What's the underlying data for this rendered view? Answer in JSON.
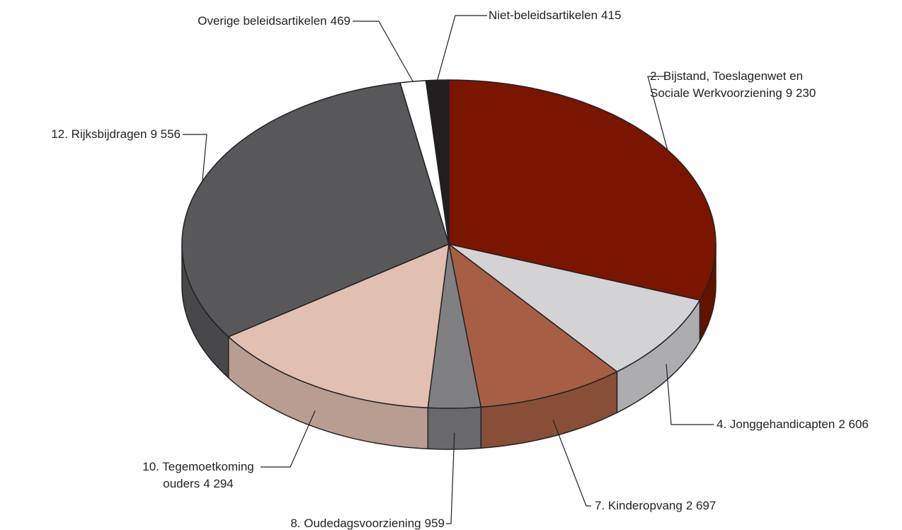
{
  "chart_data": {
    "type": "pie3d",
    "categories": [
      "2. Bijstand, Toeslagenwet en Sociale Werkvoorziening",
      "4. Jonggehandicapten",
      "7. Kinderopvang",
      "8. Oudedagsvoorziening",
      "10. Tegemoetkoming ouders",
      "12. Rijksbijdragen",
      "Overige beleidsartikelen",
      "Niet-beleidsartikelen"
    ],
    "values": [
      9230,
      2606,
      2697,
      959,
      4294,
      9556,
      469,
      415
    ],
    "value_labels": [
      "9 230",
      "2 606",
      "2 697",
      "959",
      "4 294",
      "9 556",
      "469",
      "415"
    ],
    "colors": [
      "#7a1500",
      "#d3d3d5",
      "#a65f44",
      "#808083",
      "#e1c0b1",
      "#58585a",
      "#ffffff",
      "#231f20"
    ]
  }
}
